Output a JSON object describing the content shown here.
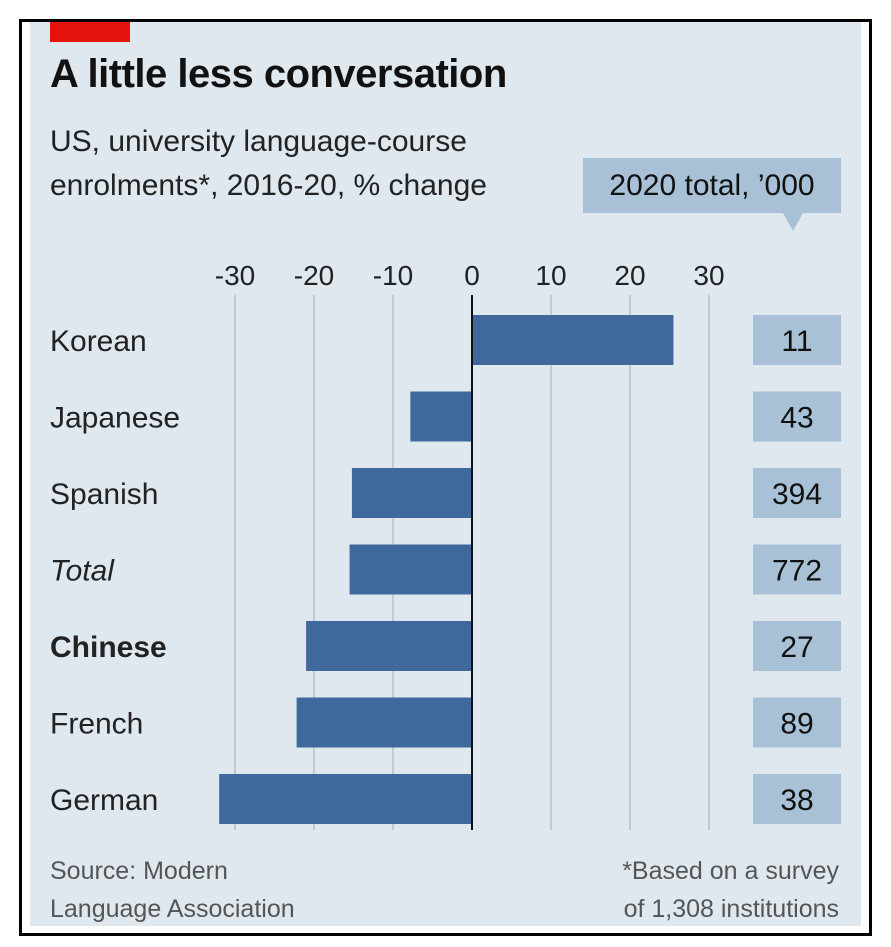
{
  "header": {
    "title": "A little less conversation",
    "subtitle": "US, university language-course enrolments*, 2016-20, % change",
    "total_column_label": "2020 total, ’000"
  },
  "footer": {
    "source_line1": "Source: Modern",
    "source_line2": "Language Association",
    "note_line1": "*Based on a survey",
    "note_line2": "of 1,308 institutions"
  },
  "colors": {
    "background": "#dfe7ef",
    "bar": "#3f689d",
    "accent": "#e3120b",
    "total_box": "#a8c1d6",
    "gridline": "#b8c2cc"
  },
  "chart_data": {
    "type": "bar",
    "orientation": "horizontal",
    "title": "A little less conversation",
    "subtitle": "US, university language-course enrolments*, 2016-20, % change",
    "xlim": [
      -30,
      30
    ],
    "xticks": [
      -30,
      -20,
      -10,
      0,
      10,
      20,
      30
    ],
    "grid": true,
    "categories": [
      "Korean",
      "Japanese",
      "Spanish",
      "Total",
      "Chinese",
      "French",
      "German"
    ],
    "category_styles": [
      "normal",
      "normal",
      "normal",
      "italic",
      "bold",
      "normal",
      "normal"
    ],
    "values": [
      25.5,
      -7.8,
      -15.2,
      -15.5,
      -21,
      -22.2,
      -32
    ],
    "totals_2020_thousands": [
      "11",
      "43",
      "394",
      "772",
      "27",
      "89",
      "38"
    ]
  }
}
